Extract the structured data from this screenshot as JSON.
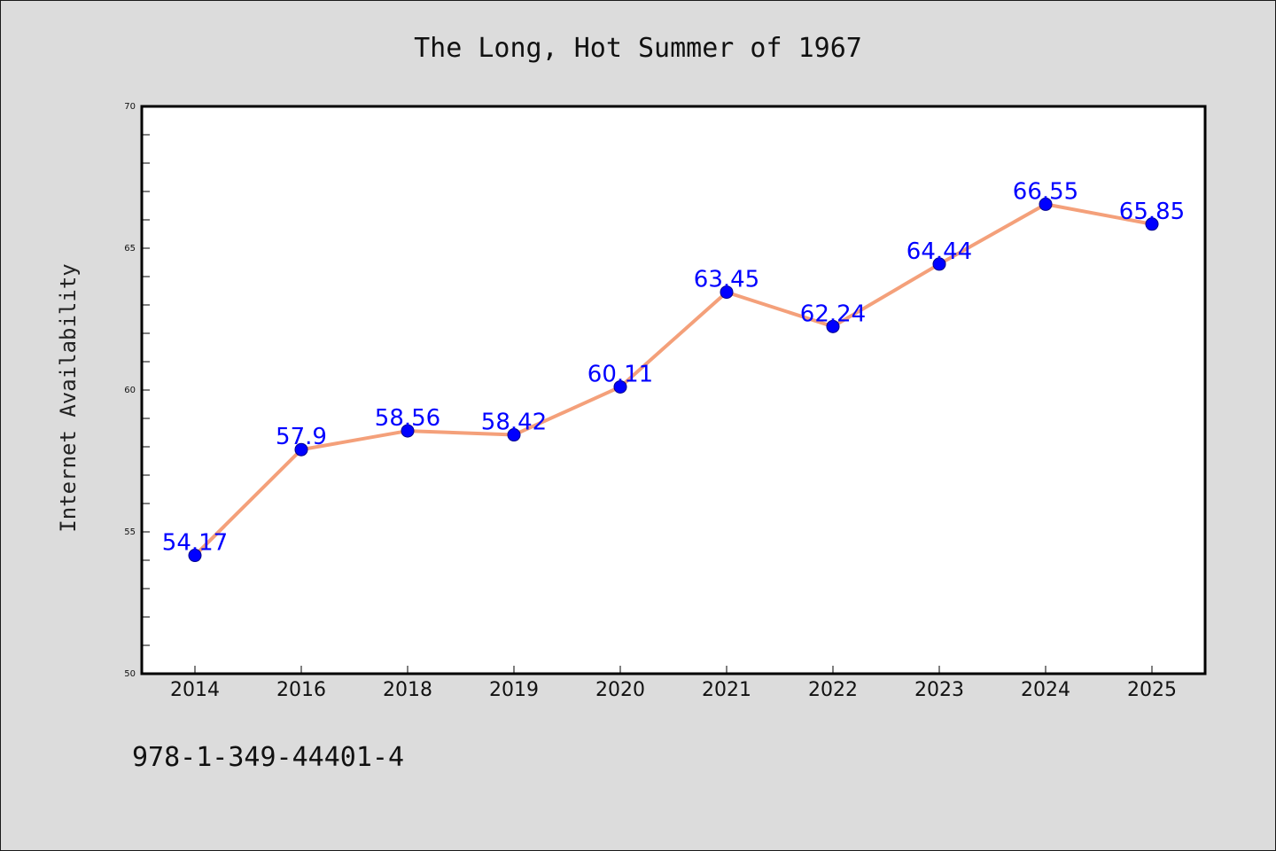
{
  "figure": {
    "background": "#dcdcdc",
    "footer_text": "978-1-349-44401-4"
  },
  "chart_data": {
    "type": "line",
    "title": "The Long, Hot Summer of 1967",
    "xlabel": "",
    "ylabel": "Internet Availability",
    "categories": [
      "2014",
      "2016",
      "2018",
      "2019",
      "2020",
      "2021",
      "2022",
      "2023",
      "2024",
      "2025"
    ],
    "series": [
      {
        "values": [
          54.17,
          57.9,
          58.56,
          58.42,
          60.11,
          63.45,
          62.24,
          64.44,
          66.55,
          65.85
        ],
        "data_labels": [
          "54.17",
          "57.9",
          "58.56",
          "58.42",
          "60.11",
          "63.45",
          "62.24",
          "64.44",
          "66.55",
          "65.85"
        ],
        "line_color": "#f4a07a",
        "marker_color": "#0000ff"
      }
    ],
    "ylim": [
      50,
      70
    ],
    "yticks": [
      50,
      55,
      60,
      65,
      70
    ],
    "ytick_labels": [
      "50",
      "55",
      "60",
      "65",
      "70"
    ],
    "grid": false,
    "legend": "none",
    "plot_background": "#ffffff",
    "data_label_color": "#0000ff"
  }
}
